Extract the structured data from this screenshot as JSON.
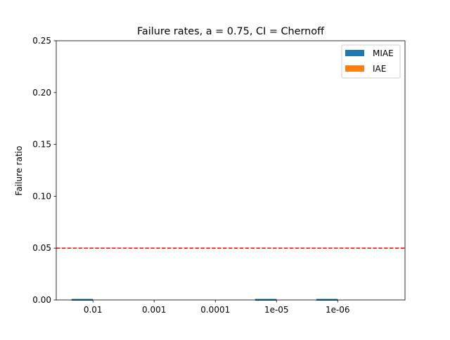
{
  "chart_data": {
    "type": "bar",
    "title": "Failure rates, a = 0.75, CI = Chernoff",
    "xlabel": "",
    "ylabel": "Failure ratio",
    "categories": [
      "0.01",
      "0.001",
      "0.0001",
      "1e-05",
      "1e-06"
    ],
    "series": [
      {
        "name": "MIAE",
        "color": "#1f77b4",
        "values": [
          0.001,
          0,
          0,
          0.001,
          0.001
        ]
      },
      {
        "name": "IAE",
        "color": "#ff7f0e",
        "values": [
          0,
          0,
          0,
          0,
          0
        ]
      }
    ],
    "ylim": [
      0,
      0.25
    ],
    "yticks": [
      "0.00",
      "0.05",
      "0.10",
      "0.15",
      "0.20",
      "0.25"
    ],
    "reference_line": {
      "value": 0.05,
      "color": "#ff0000",
      "style": "dashed"
    },
    "legend_position": "top-right",
    "grid": false
  }
}
